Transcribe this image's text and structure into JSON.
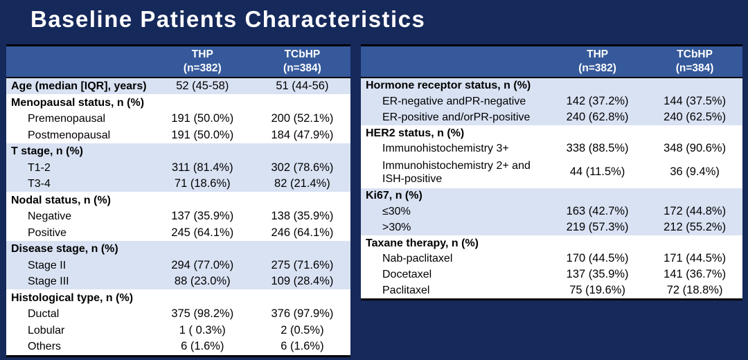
{
  "title": "Baseline Patients Characteristics",
  "columns": {
    "thp": "THP",
    "thp_n": "(n=382)",
    "tcbhp": "TCbHP",
    "tcbhp_n": "(n=384)"
  },
  "left_table": {
    "rows": [
      {
        "label": "Age (median [IQR], years)",
        "style": "category",
        "shade": true,
        "v1": "52 (45-58)",
        "v2": "51 (44-56)"
      },
      {
        "label": "Menopausal status, n (%)",
        "style": "category",
        "shade": false,
        "v1": "",
        "v2": ""
      },
      {
        "label": "Premenopausal",
        "style": "sub",
        "shade": false,
        "v1": "191 (50.0%)",
        "v2": "200 (52.1%)"
      },
      {
        "label": "Postmenopausal",
        "style": "sub",
        "shade": false,
        "v1": "191 (50.0%)",
        "v2": "184 (47.9%)"
      },
      {
        "label": "T stage, n (%)",
        "style": "category",
        "shade": true,
        "v1": "",
        "v2": ""
      },
      {
        "label": "T1-2",
        "style": "sub",
        "shade": true,
        "v1": "311 (81.4%)",
        "v2": "302 (78.6%)"
      },
      {
        "label": "T3-4",
        "style": "sub",
        "shade": true,
        "v1": "71 (18.6%)",
        "v2": "82 (21.4%)"
      },
      {
        "label": "Nodal status, n (%)",
        "style": "category",
        "shade": false,
        "v1": "",
        "v2": ""
      },
      {
        "label": "Negative",
        "style": "sub",
        "shade": false,
        "v1": "137 (35.9%)",
        "v2": "138 (35.9%)"
      },
      {
        "label": "Positive",
        "style": "sub",
        "shade": false,
        "v1": "245 (64.1%)",
        "v2": "246 (64.1%)"
      },
      {
        "label": "Disease stage, n (%)",
        "style": "category",
        "shade": true,
        "v1": "",
        "v2": ""
      },
      {
        "label": "Stage II",
        "style": "sub",
        "shade": true,
        "v1": "294 (77.0%)",
        "v2": "275 (71.6%)"
      },
      {
        "label": "Stage III",
        "style": "sub",
        "shade": true,
        "v1": "88 (23.0%)",
        "v2": "109 (28.4%)"
      },
      {
        "label": "Histological type, n (%)",
        "style": "category",
        "shade": false,
        "v1": "",
        "v2": ""
      },
      {
        "label": "Ductal",
        "style": "sub",
        "shade": false,
        "v1": "375 (98.2%)",
        "v2": "376 (97.9%)"
      },
      {
        "label": "Lobular",
        "style": "sub",
        "shade": false,
        "v1": "1 ( 0.3%)",
        "v2": "2 (0.5%)"
      },
      {
        "label": "Others",
        "style": "sub",
        "shade": false,
        "v1": "6 (1.6%)",
        "v2": "6 (1.6%)"
      }
    ]
  },
  "right_table": {
    "rows": [
      {
        "label": "Hormone receptor status, n (%)",
        "style": "category",
        "shade": true,
        "v1": "",
        "v2": ""
      },
      {
        "label": "ER-negative andPR-negative",
        "style": "sub",
        "shade": true,
        "v1": "142 (37.2%)",
        "v2": "144 (37.5%)"
      },
      {
        "label": "ER-positive and/orPR-positive",
        "style": "sub",
        "shade": true,
        "v1": "240 (62.8%)",
        "v2": "240 (62.5%)"
      },
      {
        "label": "HER2 status, n (%)",
        "style": "category",
        "shade": false,
        "v1": "",
        "v2": ""
      },
      {
        "label": "Immunohistochemistry 3+",
        "style": "sub",
        "shade": false,
        "v1": "338 (88.5%)",
        "v2": "348 (90.6%)"
      },
      {
        "label": "Immunohistochemistry 2+ and ISH-positive",
        "style": "sub",
        "shade": false,
        "v1": "44 (11.5%)",
        "v2": "36 (9.4%)"
      },
      {
        "label": "Ki67, n (%)",
        "style": "category",
        "shade": true,
        "v1": "",
        "v2": ""
      },
      {
        "label": "≤30%",
        "style": "sub",
        "shade": true,
        "v1": "163 (42.7%)",
        "v2": "172 (44.8%)"
      },
      {
        "label": ">30%",
        "style": "sub",
        "shade": true,
        "v1": "219 (57.3%)",
        "v2": "212 (55.2%)"
      },
      {
        "label": "Taxane therapy, n (%)",
        "style": "category",
        "shade": false,
        "v1": "",
        "v2": ""
      },
      {
        "label": "Nab-paclitaxel",
        "style": "sub",
        "shade": false,
        "v1": "170 (44.5%)",
        "v2": "171 (44.5%)"
      },
      {
        "label": "Docetaxel",
        "style": "sub",
        "shade": false,
        "v1": "137 (35.9%)",
        "v2": "141 (36.7%)"
      },
      {
        "label": "Paclitaxel",
        "style": "sub",
        "shade": false,
        "v1": "75 (19.6%)",
        "v2": "72 (18.8%)"
      }
    ]
  }
}
